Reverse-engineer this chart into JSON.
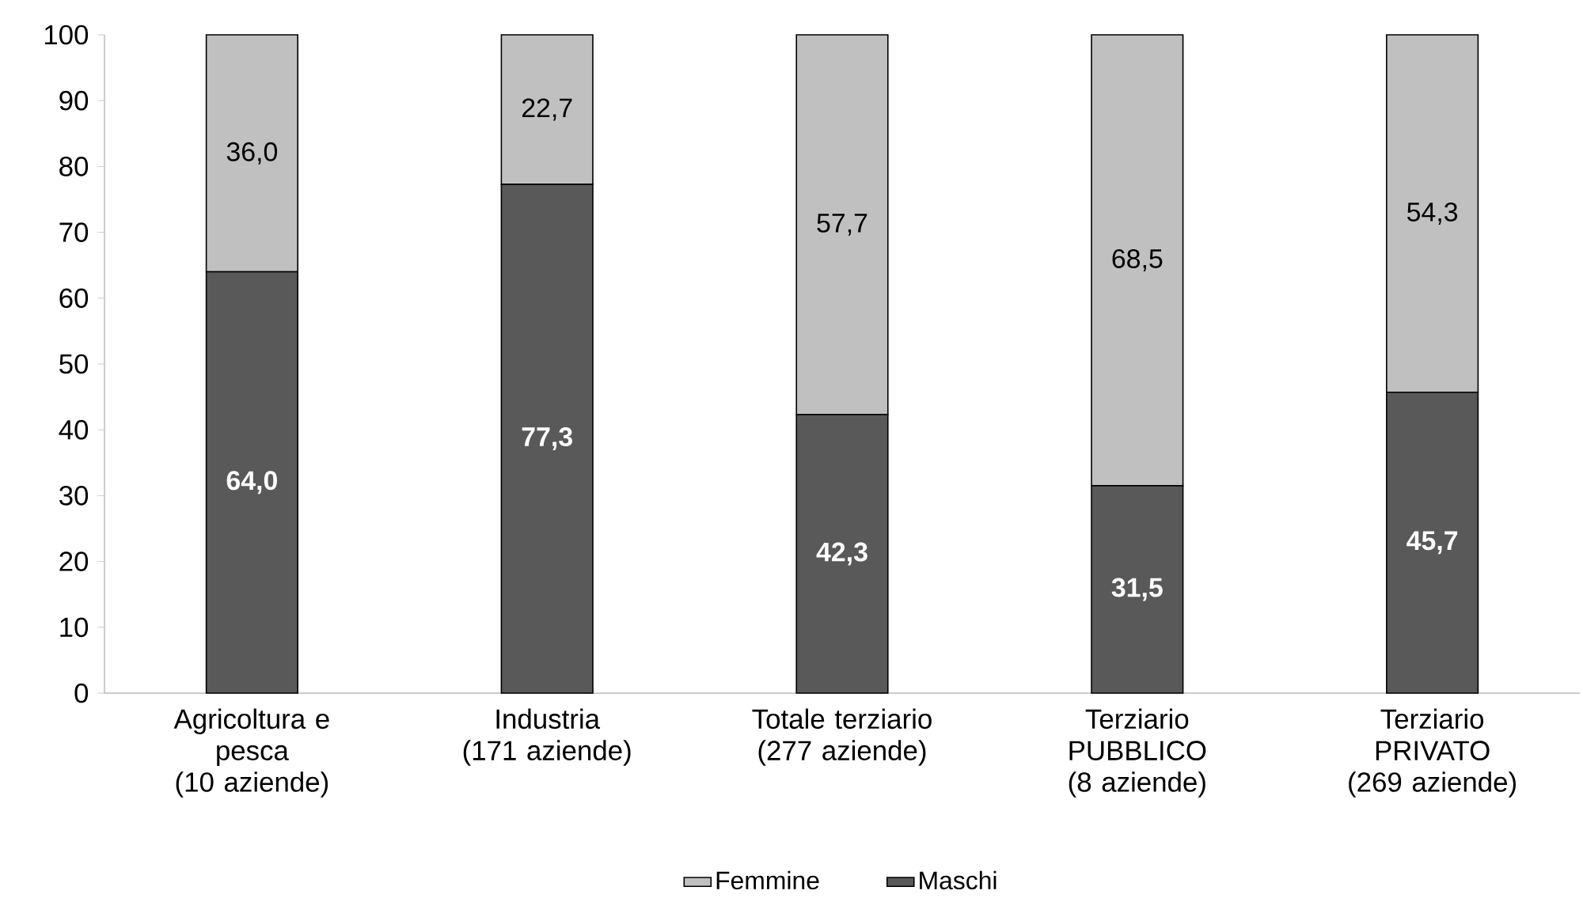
{
  "chart_data": {
    "type": "bar",
    "stacked": true,
    "categories": [
      "Agricoltura e\npesca\n(10 aziende)",
      "Industria\n(171 aziende)",
      "Totale terziario\n(277 aziende)",
      "Terziario\nPUBBLICO\n(8 aziende)",
      "Terziario\nPRIVATO\n(269 aziende)"
    ],
    "series": [
      {
        "name": "Maschi",
        "color": "#595959",
        "values": [
          64.0,
          77.3,
          42.3,
          31.5,
          45.7
        ],
        "value_labels": [
          "64,0",
          "77,3",
          "42,3",
          "31,5",
          "45,7"
        ]
      },
      {
        "name": "Femmine",
        "color": "#c0c0c0",
        "values": [
          36.0,
          22.7,
          57.7,
          68.5,
          54.3
        ],
        "value_labels": [
          "36,0",
          "22,7",
          "57,7",
          "68,5",
          "54,3"
        ]
      }
    ],
    "ylim": [
      0,
      100
    ],
    "yticks": [
      0,
      10,
      20,
      30,
      40,
      50,
      60,
      70,
      80,
      90,
      100
    ],
    "grid": false,
    "legend": "bottom"
  }
}
